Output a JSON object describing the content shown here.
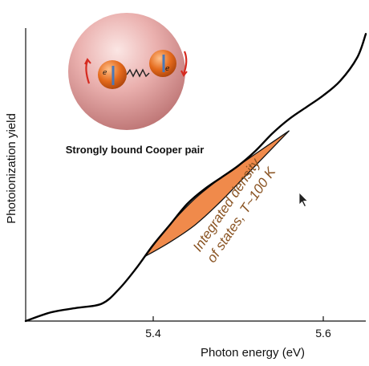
{
  "colors": {
    "curve": "#000000",
    "fill_region": "#f08a4b",
    "annotation": "#8a5423",
    "sphere": "#e8a7a7",
    "electron": "#e06a1f",
    "spin_arrow": "#d62a1f"
  },
  "illustration": {
    "caption": "Strongly bound Cooper pair",
    "electron_label": "e",
    "icons": [
      "sphere-icon",
      "electron-icon",
      "spring-icon",
      "spin-arrow-icon"
    ]
  },
  "chart_data": {
    "type": "line",
    "title": "",
    "xlabel": "Photon energy (eV)",
    "ylabel": "Photoionization yield",
    "xlim": [
      5.25,
      5.65
    ],
    "ylim": [
      0,
      1
    ],
    "grid": false,
    "x_ticks": [
      5.4,
      5.6
    ],
    "x_tick_labels": [
      "5.4",
      "5.6"
    ],
    "series": [
      {
        "x": [
          5.25,
          5.28,
          5.31,
          5.34,
          5.36,
          5.38,
          5.4,
          5.42,
          5.44,
          5.46,
          5.48,
          5.5,
          5.52,
          5.54,
          5.56,
          5.58,
          5.6,
          5.62,
          5.64,
          5.65
        ],
        "values": [
          0.0,
          0.03,
          0.045,
          0.06,
          0.11,
          0.18,
          0.26,
          0.33,
          0.4,
          0.45,
          0.49,
          0.53,
          0.58,
          0.64,
          0.69,
          0.73,
          0.77,
          0.82,
          0.9,
          0.98
        ]
      }
    ],
    "shaded_region": {
      "x_start": 5.39,
      "x_end": 5.56,
      "upper": {
        "x": [
          5.39,
          5.42,
          5.45,
          5.48,
          5.51,
          5.54,
          5.56
        ],
        "values": [
          0.22,
          0.33,
          0.42,
          0.49,
          0.55,
          0.61,
          0.65
        ]
      },
      "lower": {
        "x": [
          5.39,
          5.42,
          5.45,
          5.48,
          5.51,
          5.54,
          5.56
        ],
        "values": [
          0.22,
          0.27,
          0.33,
          0.41,
          0.5,
          0.59,
          0.65
        ]
      }
    },
    "annotations": [
      {
        "lines": [
          "Integrated density",
          "of states, T~100 K"
        ]
      }
    ]
  }
}
